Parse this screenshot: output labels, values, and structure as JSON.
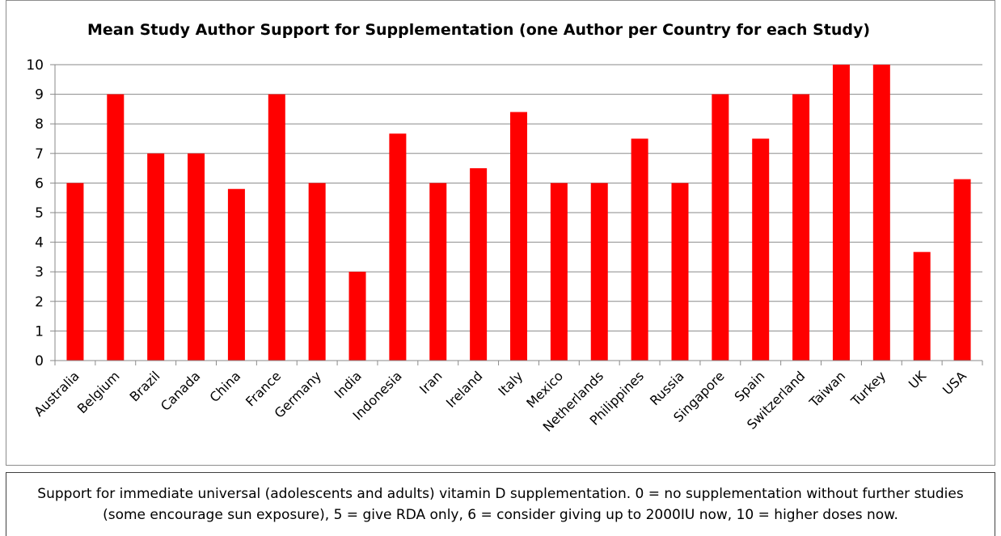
{
  "chart_data": {
    "type": "bar",
    "title": "Mean Study Author Support for Supplementation (one Author per Country for each Study)",
    "xlabel": "",
    "ylabel": "",
    "ylim": [
      0,
      10
    ],
    "yticks": [
      "0",
      "1",
      "2",
      "3",
      "4",
      "5",
      "6",
      "7",
      "8",
      "9",
      "10"
    ],
    "grid": true,
    "legend": "none",
    "bar_color": "#ff0000",
    "categories": [
      "Australia",
      "Belgium",
      "Brazil",
      "Canada",
      "China",
      "France",
      "Germany",
      "India",
      "Indonesia",
      "Iran",
      "Ireland",
      "Italy",
      "Mexico",
      "Netherlands",
      "Philippines",
      "Russia",
      "Singapore",
      "Spain",
      "Switzerland",
      "Taiwan",
      "Turkey",
      "UK",
      "USA"
    ],
    "values": [
      6,
      9,
      7,
      7,
      5.8,
      9,
      6,
      3,
      7.67,
      6,
      6.5,
      8.4,
      6,
      6,
      7.5,
      6,
      9,
      7.5,
      9,
      10,
      10,
      3.67,
      6.13
    ]
  },
  "caption": {
    "text": "Support for immediate universal (adolescents and adults) vitamin D supplementation. 0 = no supplementation without further studies (some encourage sun exposure), 5 = give RDA only, 6 = consider giving up to 2000IU now, 10 = higher doses now."
  }
}
